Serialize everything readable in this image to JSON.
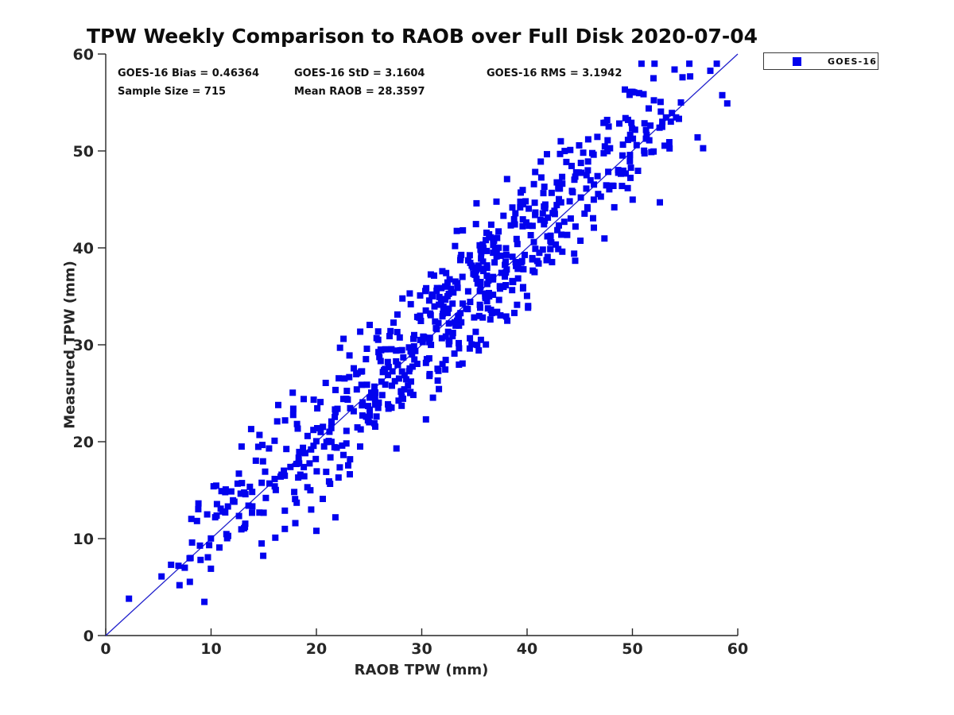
{
  "title": "TPW Weekly Comparison to RAOB over Full Disk 2020-07-04",
  "annotations": {
    "bias": "GOES-16 Bias = 0.46364",
    "std": "GOES-16 StD = 3.1604",
    "rms": "GOES-16 RMS = 3.1942",
    "sample_size": "Sample Size = 715",
    "mean_raob": "Mean RAOB = 28.3597"
  },
  "legend": {
    "position": "top-right-outside",
    "entries": [
      {
        "label": "GOES-16",
        "marker": "square",
        "marker_color": "#0202EE"
      }
    ]
  },
  "chart_data": {
    "type": "scatter",
    "title": "TPW Weekly Comparison to RAOB over Full Disk 2020-07-04",
    "xlabel": "RAOB TPW (mm)",
    "ylabel": "Measured TPW (mm)",
    "xlim": [
      0,
      60
    ],
    "ylim": [
      0,
      60
    ],
    "x_ticks": [
      0,
      10,
      20,
      30,
      40,
      50,
      60
    ],
    "y_ticks": [
      0,
      10,
      20,
      30,
      40,
      50,
      60
    ],
    "grid": false,
    "axis_color": "#262626",
    "reference_line": {
      "type": "identity",
      "from": [
        0,
        0
      ],
      "to": [
        60,
        60
      ],
      "color": "#2020CC"
    },
    "series": [
      {
        "name": "GOES-16",
        "marker": "square",
        "marker_size_px": 8,
        "color": "#0202EE",
        "sample_size": 715,
        "bias": 0.46364,
        "std": 3.1604,
        "rms": 3.1942,
        "mean_raob": 28.3597,
        "x_range": [
          2,
          59
        ],
        "notable_points": [
          [
            2.2,
            3.8
          ],
          [
            5.3,
            6.1
          ],
          [
            6.2,
            7.3
          ],
          [
            7.0,
            5.2
          ],
          [
            7.5,
            7.0
          ],
          [
            8.2,
            9.6
          ],
          [
            9.0,
            7.8
          ],
          [
            52.0,
            57.5
          ],
          [
            50.0,
            56.1
          ],
          [
            54.6,
            55.0
          ],
          [
            59.0,
            54.9
          ],
          [
            52.6,
            44.7
          ],
          [
            47.6,
            53.2
          ],
          [
            49.9,
            52.9
          ],
          [
            51.6,
            51.1
          ],
          [
            50.4,
            50.6
          ],
          [
            53.5,
            50.9
          ],
          [
            45.1,
            45.2
          ],
          [
            14.8,
            9.5
          ],
          [
            16.1,
            10.1
          ],
          [
            17.0,
            11.0
          ],
          [
            18.0,
            11.6
          ],
          [
            20.0,
            10.8
          ],
          [
            21.8,
            12.2
          ],
          [
            19.5,
            13.0
          ],
          [
            20.6,
            14.1
          ],
          [
            21.2,
            15.9
          ],
          [
            22.1,
            16.3
          ],
          [
            16.6,
            16.4
          ],
          [
            15.2,
            14.2
          ],
          [
            13.8,
            21.3
          ],
          [
            14.6,
            20.7
          ],
          [
            12.9,
            19.5
          ],
          [
            15.5,
            19.3
          ],
          [
            27.6,
            19.3
          ],
          [
            26.9,
            23.6
          ],
          [
            30.4,
            22.3
          ],
          [
            28.1,
            24.6
          ],
          [
            25.5,
            21.9
          ],
          [
            35.2,
            44.6
          ],
          [
            38.1,
            47.1
          ],
          [
            33.9,
            41.8
          ],
          [
            36.4,
            35.0
          ],
          [
            40.1,
            34.0
          ],
          [
            41.3,
            48.9
          ],
          [
            43.2,
            51.0
          ],
          [
            44.1,
            50.1
          ]
        ]
      }
    ]
  }
}
